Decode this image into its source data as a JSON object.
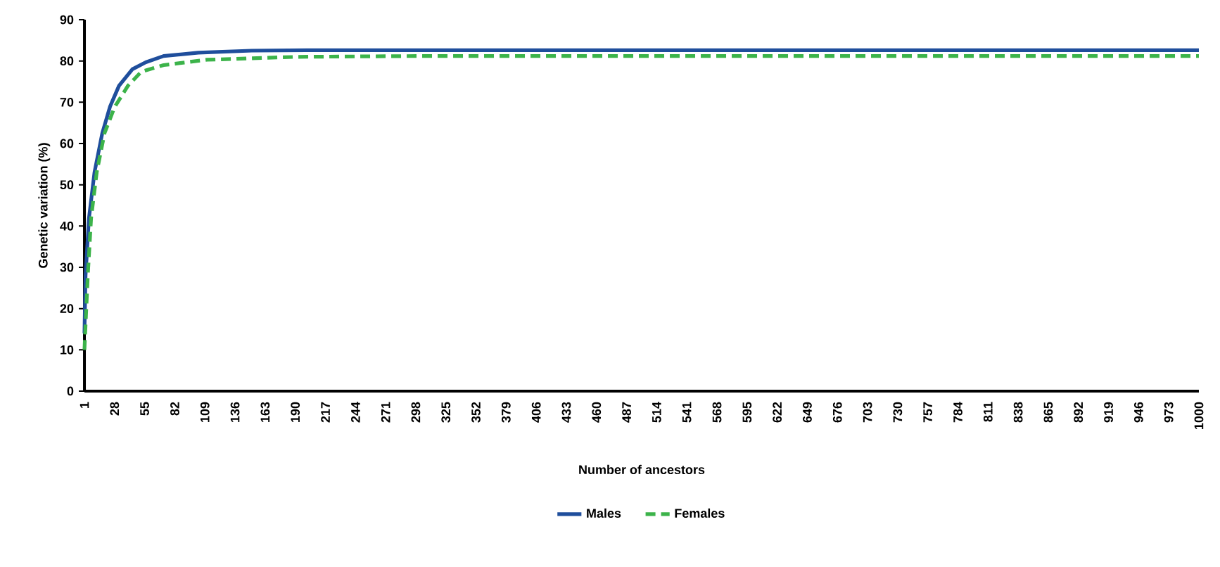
{
  "chart_data": {
    "type": "line",
    "xlabel": "Number of ancestors",
    "ylabel": "Genetic variation (%)",
    "xlim": [
      1,
      1000
    ],
    "ylim": [
      0,
      90
    ],
    "xticks": [
      1,
      28,
      55,
      82,
      109,
      136,
      163,
      190,
      217,
      244,
      271,
      298,
      325,
      352,
      379,
      406,
      433,
      460,
      487,
      514,
      541,
      568,
      595,
      622,
      649,
      676,
      703,
      730,
      757,
      784,
      811,
      838,
      865,
      892,
      919,
      946,
      973,
      1000
    ],
    "yticks": [
      0,
      10,
      20,
      30,
      40,
      50,
      60,
      70,
      80,
      90
    ],
    "legend": "bottom",
    "marker": "none",
    "series": [
      {
        "name": "Males",
        "color": "#1f4e9c",
        "line_style": "solid",
        "x": [
          1,
          2,
          5,
          10,
          17,
          24,
          32,
          44,
          56,
          72,
          103,
          151,
          200,
          400,
          600,
          800,
          1000
        ],
        "values": [
          14,
          28,
          41.8,
          53,
          62.5,
          69,
          74,
          78,
          79.7,
          81.2,
          82,
          82.5,
          82.6,
          82.6,
          82.6,
          82.6,
          82.6
        ]
      },
      {
        "name": "Females",
        "color": "#3cb34a",
        "line_style": "dashed",
        "x": [
          1,
          4,
          7,
          12,
          19,
          28,
          40,
          52,
          72,
          111,
          191,
          300,
          500,
          700,
          1000
        ],
        "values": [
          10,
          28,
          42,
          53,
          62.5,
          68.8,
          74,
          77.4,
          79,
          80.3,
          81,
          81.2,
          81.2,
          81.2,
          81.2
        ]
      }
    ]
  }
}
